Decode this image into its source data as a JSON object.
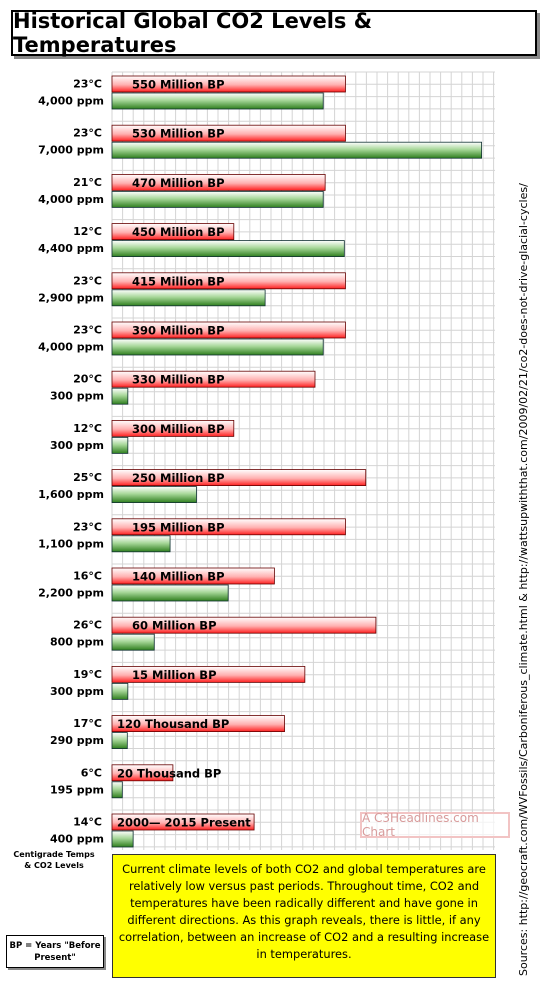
{
  "title": "Historical Global CO2 Levels & Temperatures",
  "chart_data": {
    "type": "bar",
    "orientation": "horizontal",
    "grid": true,
    "unit_temperature": "°C",
    "unit_co2": "ppm",
    "rows": [
      {
        "period": "550 Million BP",
        "temp_label": "23°C",
        "co2_label": "4,000 ppm",
        "temperature": 23,
        "co2": 4000
      },
      {
        "period": "530 Million BP",
        "temp_label": "23°C",
        "co2_label": "7,000 ppm",
        "temperature": 23,
        "co2": 7000
      },
      {
        "period": "470 Million BP",
        "temp_label": "21°C",
        "co2_label": "4,000 ppm",
        "temperature": 21,
        "co2": 4000
      },
      {
        "period": "450 Million BP",
        "temp_label": "12°C",
        "co2_label": "4,400 ppm",
        "temperature": 12,
        "co2": 4400
      },
      {
        "period": "415 Million BP",
        "temp_label": "23°C",
        "co2_label": "2,900 ppm",
        "temperature": 23,
        "co2": 2900
      },
      {
        "period": "390 Million BP",
        "temp_label": "23°C",
        "co2_label": "4,000 ppm",
        "temperature": 23,
        "co2": 4000
      },
      {
        "period": "330 Million BP",
        "temp_label": "20°C",
        "co2_label": "300 ppm",
        "temperature": 20,
        "co2": 300
      },
      {
        "period": "300 Million BP",
        "temp_label": "12°C",
        "co2_label": "300 ppm",
        "temperature": 12,
        "co2": 300
      },
      {
        "period": "250 Million BP",
        "temp_label": "25°C",
        "co2_label": "1,600 ppm",
        "temperature": 25,
        "co2": 1600
      },
      {
        "period": "195 Million BP",
        "temp_label": "23°C",
        "co2_label": "1,100 ppm",
        "temperature": 23,
        "co2": 1100
      },
      {
        "period": "140 Million BP",
        "temp_label": "16°C",
        "co2_label": "2,200 ppm",
        "temperature": 16,
        "co2": 2200
      },
      {
        "period": "60 Million BP",
        "temp_label": "26°C",
        "co2_label": "800 ppm",
        "temperature": 26,
        "co2": 800
      },
      {
        "period": "15 Million BP",
        "temp_label": "19°C",
        "co2_label": "300 ppm",
        "temperature": 19,
        "co2": 300
      },
      {
        "period": "120 Thousand BP",
        "temp_label": "17°C",
        "co2_label": "290 ppm",
        "temperature": 17,
        "co2": 290
      },
      {
        "period": "20 Thousand BP",
        "temp_label": "6°C",
        "co2_label": "195 ppm",
        "temperature": 6,
        "co2": 195
      },
      {
        "period": "2000— 2015 Present",
        "temp_label": "14°C",
        "co2_label": "400 ppm",
        "temperature": 14,
        "co2": 400
      }
    ],
    "temp_color": "#ff3a3a",
    "co2_color": "#3f8f2c"
  },
  "legend_note": [
    "Centigrade Temps",
    "& CO2 Levels"
  ],
  "bp_note": [
    "BP = Years \"Before",
    "Present\""
  ],
  "watermark": "A C3Headlines.com Chart",
  "sources": "Sources: http://geocraft.com/WVFossils/Carboniferous_climate.html  &  http://wattsupwiththat.com/2009/02/21/co2-does-not-drive-glacial-cycles/",
  "note": "Current climate levels of both CO2 and global temperatures are relatively low versus past periods. Throughout time, CO2 and temperatures have been radically different and have gone in different directions. As this graph reveals, there is little, if any correlation, between an increase of CO2 and a resulting increase in temperatures."
}
